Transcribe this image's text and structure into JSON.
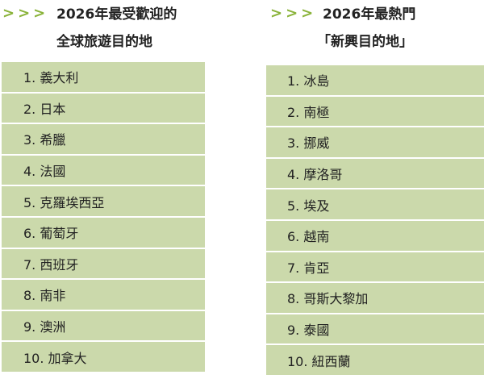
{
  "left": {
    "arrows": ">>>",
    "title_line1": "2026年最受歡迎的",
    "title_line2": "全球旅遊目的地",
    "items": [
      "1. 義大利",
      "2. 日本",
      "3. 希臘",
      "4. 法國",
      "5. 克羅埃西亞",
      "6. 葡萄牙",
      "7. 西班牙",
      "8. 南非",
      "9. 澳洲",
      "10. 加拿大"
    ]
  },
  "right": {
    "arrows": ">>>",
    "title_line1": "2026年最熱門",
    "title_line2": "「新興目的地」",
    "items": [
      "1. 冰島",
      "2. 南極",
      "3. 挪威",
      "4. 摩洛哥",
      "5. 埃及",
      "6. 越南",
      "7. 肯亞",
      "8. 哥斯大黎加",
      "9. 泰國",
      "10. 紐西蘭"
    ]
  },
  "colors": {
    "row_background": "#cbd9ab",
    "arrow": "#8ab33a"
  }
}
